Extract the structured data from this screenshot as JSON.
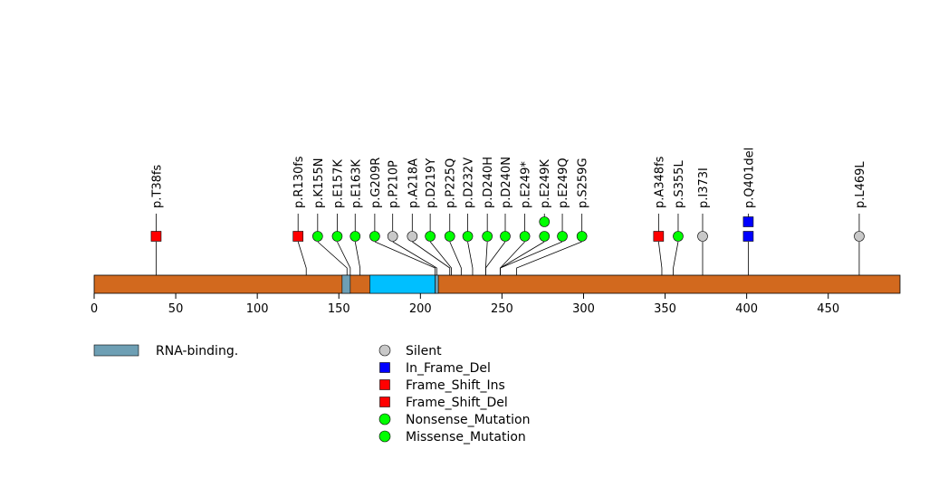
{
  "chart_data": {
    "type": "lollipop",
    "title": "",
    "protein_length": 494,
    "xlim": [
      0,
      494
    ],
    "x_ticks": [
      0,
      50,
      100,
      150,
      200,
      250,
      300,
      350,
      400,
      450
    ],
    "colors": {
      "backbone": "#d2691e",
      "domain_primary": "#00bfff",
      "domain_secondary": "#6e9fb4",
      "silent": "#c8c8c8",
      "in_frame_del": "#0000ff",
      "frame_shift": "#ff0000",
      "nonsense": "#00ff00",
      "missense": "#00ff00"
    },
    "domains": [
      {
        "start": 152,
        "end": 157,
        "color_key": "domain_secondary"
      },
      {
        "start": 169,
        "end": 209,
        "color_key": "domain_primary"
      },
      {
        "start": 209,
        "end": 211,
        "color_key": "domain_secondary"
      }
    ],
    "domain_legend": [
      {
        "label": "RNA-binding.",
        "color_key": "domain_secondary"
      }
    ],
    "mutations": [
      {
        "label": "p.T38fs",
        "pos": 38,
        "display": 38,
        "type": "frame_shift",
        "shape": "square",
        "count": 1
      },
      {
        "label": "p.R130fs",
        "pos": 130,
        "display": 125,
        "type": "frame_shift",
        "shape": "square",
        "count": 1
      },
      {
        "label": "p.K155N",
        "pos": 155,
        "display": 137,
        "type": "missense",
        "shape": "circle",
        "count": 1
      },
      {
        "label": "p.E157K",
        "pos": 157,
        "display": 149,
        "type": "missense",
        "shape": "circle",
        "count": 1
      },
      {
        "label": "p.E163K",
        "pos": 163,
        "display": 160,
        "type": "missense",
        "shape": "circle",
        "count": 1
      },
      {
        "label": "p.G209R",
        "pos": 209,
        "display": 172,
        "type": "missense",
        "shape": "circle",
        "count": 1
      },
      {
        "label": "p.P210P",
        "pos": 210,
        "display": 183,
        "type": "silent",
        "shape": "circle",
        "count": 1
      },
      {
        "label": "p.A218A",
        "pos": 218,
        "display": 195,
        "type": "silent",
        "shape": "circle",
        "count": 1
      },
      {
        "label": "p.D219Y",
        "pos": 219,
        "display": 206,
        "type": "missense",
        "shape": "circle",
        "count": 1
      },
      {
        "label": "p.P225Q",
        "pos": 225,
        "display": 218,
        "type": "missense",
        "shape": "circle",
        "count": 1
      },
      {
        "label": "p.D232V",
        "pos": 232,
        "display": 229,
        "type": "missense",
        "shape": "circle",
        "count": 1
      },
      {
        "label": "p.D240H",
        "pos": 240,
        "display": 241,
        "type": "missense",
        "shape": "circle",
        "count": 1
      },
      {
        "label": "p.D240N",
        "pos": 240,
        "display": 252,
        "type": "missense",
        "shape": "circle",
        "count": 1
      },
      {
        "label": "p.E249*",
        "pos": 249,
        "display": 264,
        "type": "nonsense",
        "shape": "circle",
        "count": 1
      },
      {
        "label": "p.E249K",
        "pos": 249,
        "display": 276,
        "type": "missense",
        "shape": "circle",
        "count": 2
      },
      {
        "label": "p.E249Q",
        "pos": 249,
        "display": 287,
        "type": "missense",
        "shape": "circle",
        "count": 1
      },
      {
        "label": "p.S259G",
        "pos": 259,
        "display": 299,
        "type": "missense",
        "shape": "circle",
        "count": 1
      },
      {
        "label": "p.A348fs",
        "pos": 348,
        "display": 346,
        "type": "frame_shift",
        "shape": "square",
        "count": 1
      },
      {
        "label": "p.S355L",
        "pos": 355,
        "display": 358,
        "type": "missense",
        "shape": "circle",
        "count": 1
      },
      {
        "label": "p.I373I",
        "pos": 373,
        "display": 373,
        "type": "silent",
        "shape": "circle",
        "count": 1
      },
      {
        "label": "p.Q401del",
        "pos": 401,
        "display": 401,
        "type": "in_frame_del",
        "shape": "square",
        "count": 2
      },
      {
        "label": "p.L469L",
        "pos": 469,
        "display": 469,
        "type": "silent",
        "shape": "circle",
        "count": 1
      }
    ],
    "legend": [
      {
        "label": "Silent",
        "shape": "circle",
        "color_key": "silent"
      },
      {
        "label": "In_Frame_Del",
        "shape": "square",
        "color_key": "in_frame_del"
      },
      {
        "label": "Frame_Shift_Ins",
        "shape": "square",
        "color_key": "frame_shift"
      },
      {
        "label": "Frame_Shift_Del",
        "shape": "square",
        "color_key": "frame_shift"
      },
      {
        "label": "Nonsense_Mutation",
        "shape": "circle",
        "color_key": "nonsense"
      },
      {
        "label": "Missense_Mutation",
        "shape": "circle",
        "color_key": "missense"
      }
    ]
  }
}
